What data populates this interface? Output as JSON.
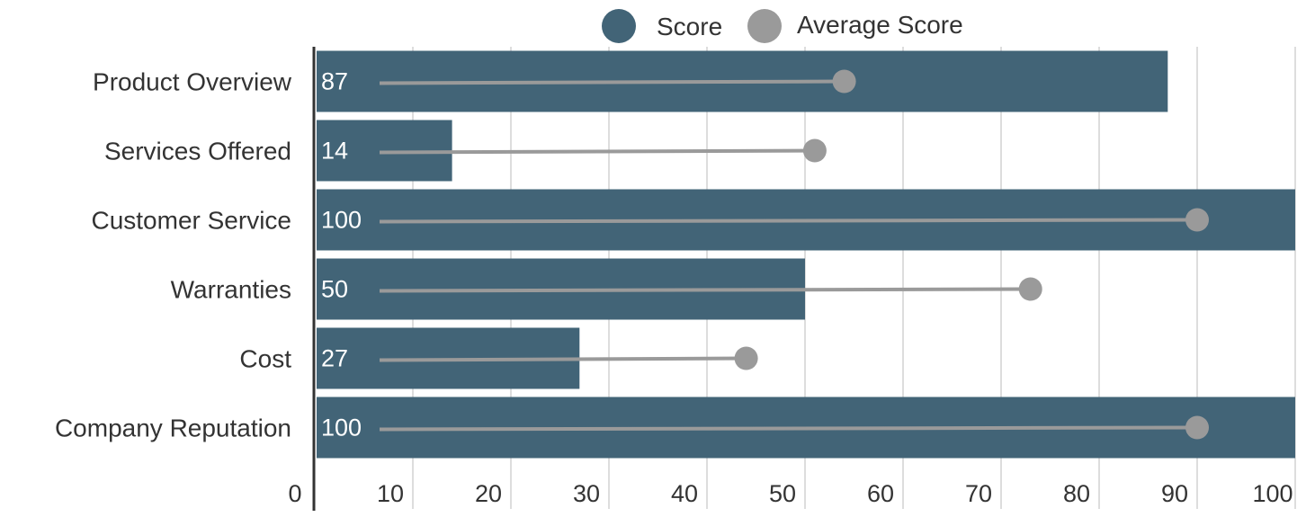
{
  "chart_data": {
    "type": "bar",
    "orientation": "horizontal",
    "categories": [
      "Product Overview",
      "Services Offered",
      "Customer Service",
      "Warranties",
      "Cost",
      "Company Reputation"
    ],
    "series": [
      {
        "name": "Score",
        "values": [
          87,
          14,
          100,
          50,
          27,
          100
        ],
        "color": "#426477",
        "style": "bar"
      },
      {
        "name": "Average Score",
        "values": [
          54,
          51,
          90,
          73,
          44,
          90
        ],
        "color": "#9a9a9a",
        "style": "lollipop"
      }
    ],
    "xlim": [
      0,
      100
    ],
    "x_ticks": [
      "0",
      "10",
      "20",
      "30",
      "40",
      "50",
      "60",
      "70",
      "80",
      "90",
      "100"
    ],
    "grid": "vertical",
    "legend_position": "top",
    "data_labels": [
      "87",
      "14",
      "100",
      "50",
      "27",
      "100"
    ]
  }
}
